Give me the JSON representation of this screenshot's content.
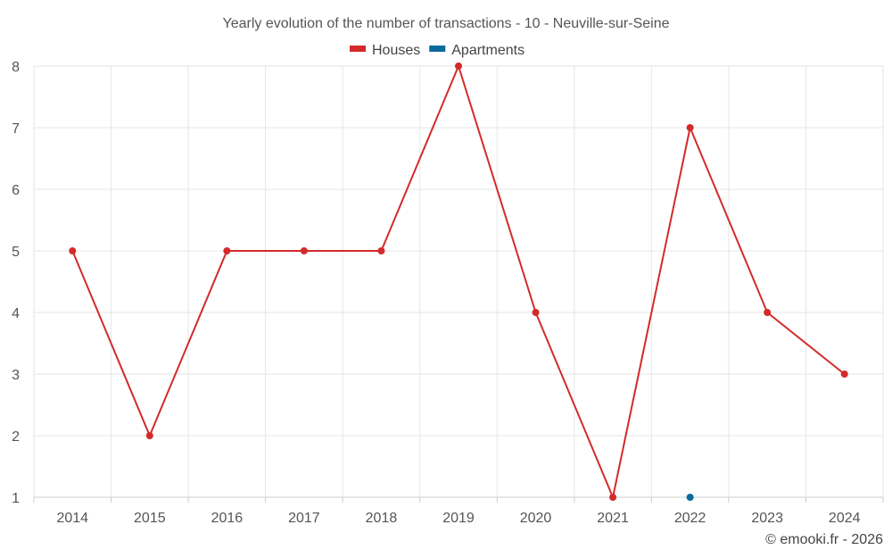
{
  "chart_data": {
    "type": "line",
    "title": "Yearly evolution of the number of transactions - 10 - Neuville-sur-Seine",
    "categories": [
      "2014",
      "2015",
      "2016",
      "2017",
      "2018",
      "2019",
      "2020",
      "2021",
      "2022",
      "2023",
      "2024"
    ],
    "series": [
      {
        "name": "Houses",
        "color": "#d42a2a",
        "values": [
          5,
          2,
          5,
          5,
          5,
          8,
          4,
          1,
          7,
          4,
          3
        ]
      },
      {
        "name": "Apartments",
        "color": "#0b6a9c",
        "values": [
          null,
          null,
          null,
          null,
          null,
          null,
          null,
          null,
          1,
          null,
          null
        ]
      }
    ],
    "y_ticks": [
      1,
      2,
      3,
      4,
      5,
      6,
      7,
      8
    ],
    "ylim": [
      1,
      8
    ],
    "grid": true,
    "legend_position": "top-center",
    "xlabel": "",
    "ylabel": ""
  },
  "credit": "© emooki.fr - 2026"
}
